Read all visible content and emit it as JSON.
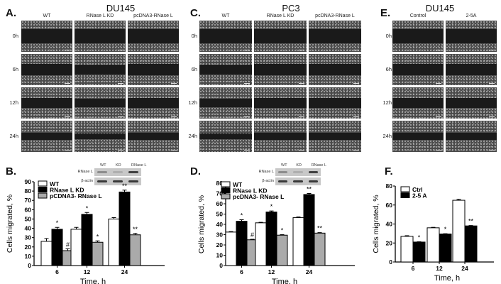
{
  "panels": {
    "A": {
      "label": "A.",
      "title": "DU145",
      "columns": [
        "WT",
        "RNase L KD",
        "pcDNA3-RNase L"
      ],
      "rows": [
        "0h",
        "6h",
        "12h",
        "24h"
      ]
    },
    "C": {
      "label": "C.",
      "title": "PC3",
      "columns": [
        "WT",
        "RNase L KD",
        "pcDNA3-RNase L"
      ],
      "rows": [
        "0h",
        "6h",
        "12h",
        "24h"
      ]
    },
    "E": {
      "label": "E.",
      "title": "DU145",
      "columns": [
        "Control",
        "2-5A"
      ],
      "rows": [
        "0h",
        "6h",
        "12h",
        "24h"
      ]
    },
    "B": {
      "label": "B.",
      "blot": {
        "lanes": [
          "WT",
          "KD",
          "RNase L"
        ],
        "rows": [
          "RNase L",
          "β-actin"
        ]
      }
    },
    "D": {
      "label": "D.",
      "blot": {
        "lanes": [
          "WT",
          "KD",
          "RNase L"
        ],
        "rows": [
          "RNase L",
          "β-actin"
        ]
      }
    },
    "F": {
      "label": "F."
    }
  },
  "chart_data": [
    {
      "panel": "B",
      "type": "bar",
      "title": "",
      "xlabel": "Time, h",
      "ylabel": "Cells migrated, %",
      "ylim": [
        0,
        90
      ],
      "yticks": [
        0,
        10,
        20,
        30,
        40,
        50,
        60,
        70,
        80,
        90
      ],
      "categories": [
        "6",
        "12",
        "24"
      ],
      "legend_position": "upper-left",
      "series": [
        {
          "name": "WT",
          "color": "#ffffff",
          "values": [
            26,
            39,
            50
          ],
          "errors": [
            3,
            2,
            1.5
          ],
          "annotations": [
            "",
            "",
            ""
          ]
        },
        {
          "name": "RNase L KD",
          "color": "#000000",
          "values": [
            39,
            55,
            79
          ],
          "errors": [
            2,
            2,
            2
          ],
          "annotations": [
            "*",
            "*",
            "**"
          ]
        },
        {
          "name": "pCDNA3- RNase L",
          "color": "#aaaaaa",
          "values": [
            16,
            25,
            33
          ],
          "errors": [
            2,
            1.5,
            1.5
          ],
          "annotations": [
            "#",
            "*",
            "**"
          ]
        }
      ]
    },
    {
      "panel": "D",
      "type": "bar",
      "title": "",
      "xlabel": "Time, h",
      "ylabel": "Cells migrated, %",
      "ylim": [
        0,
        80
      ],
      "yticks": [
        0,
        10,
        20,
        30,
        40,
        50,
        60,
        70,
        80
      ],
      "categories": [
        "6",
        "12",
        "24"
      ],
      "legend_position": "upper-left",
      "series": [
        {
          "name": "WT",
          "color": "#ffffff",
          "values": [
            32.5,
            41.5,
            46.5
          ],
          "errors": [
            0.5,
            0.5,
            0.7
          ],
          "annotations": [
            "",
            "",
            ""
          ]
        },
        {
          "name": "RNase L KD",
          "color": "#000000",
          "values": [
            43,
            52,
            69
          ],
          "errors": [
            1.5,
            1,
            1
          ],
          "annotations": [
            "*",
            "*",
            "**"
          ]
        },
        {
          "name": "pcDNA3- RNase L",
          "color": "#aaaaaa",
          "values": [
            25,
            29.5,
            31.5
          ],
          "errors": [
            0.5,
            0.5,
            0.5
          ],
          "annotations": [
            "#",
            "*",
            "**"
          ]
        }
      ]
    },
    {
      "panel": "F",
      "type": "bar",
      "title": "",
      "xlabel": "Time, h",
      "ylabel": "Cells migrated, %",
      "ylim": [
        0,
        80
      ],
      "yticks": [
        0,
        20,
        40,
        60,
        80
      ],
      "categories": [
        "6",
        "12",
        "24"
      ],
      "legend_position": "upper-left",
      "series": [
        {
          "name": "Ctrl",
          "color": "#ffffff",
          "values": [
            27,
            36,
            65
          ],
          "errors": [
            0.7,
            0.5,
            1
          ],
          "annotations": [
            "",
            "",
            ""
          ]
        },
        {
          "name": "2-5 A",
          "color": "#000000",
          "values": [
            21,
            29.5,
            38
          ],
          "errors": [
            0.3,
            0.3,
            0.4
          ],
          "annotations": [
            "*",
            "*",
            "**"
          ]
        }
      ]
    }
  ]
}
